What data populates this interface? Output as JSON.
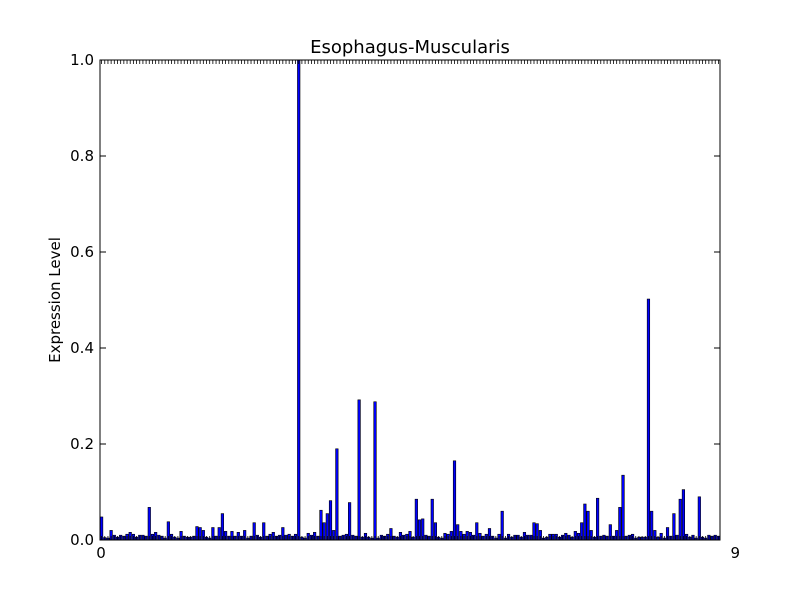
{
  "chart_data": {
    "type": "bar",
    "title": "Esophagus-Muscularis",
    "xlabel": "",
    "ylabel": "Expression Level",
    "ylim": [
      0,
      1.0
    ],
    "yticks": [
      "0.0",
      "0.2",
      "0.4",
      "0.6",
      "0.8",
      "1.0"
    ],
    "grid": false,
    "bar_color": "#0000ff",
    "x_tick_text": "0",
    "x_tick_text_end": "9",
    "values": [
      0.048,
      0.005,
      0.004,
      0.02,
      0.01,
      0.006,
      0.01,
      0.008,
      0.012,
      0.016,
      0.012,
      0.006,
      0.01,
      0.01,
      0.008,
      0.068,
      0.012,
      0.016,
      0.01,
      0.008,
      0.004,
      0.038,
      0.012,
      0.006,
      0.004,
      0.018,
      0.008,
      0.006,
      0.006,
      0.008,
      0.028,
      0.026,
      0.02,
      0.006,
      0.004,
      0.026,
      0.008,
      0.026,
      0.055,
      0.018,
      0.008,
      0.018,
      0.008,
      0.016,
      0.008,
      0.02,
      0.004,
      0.008,
      0.036,
      0.01,
      0.006,
      0.036,
      0.008,
      0.012,
      0.016,
      0.008,
      0.01,
      0.026,
      0.01,
      0.012,
      0.008,
      0.012,
      1.0,
      0.006,
      0.004,
      0.014,
      0.01,
      0.016,
      0.008,
      0.062,
      0.036,
      0.055,
      0.082,
      0.02,
      0.19,
      0.008,
      0.01,
      0.012,
      0.078,
      0.01,
      0.008,
      0.292,
      0.006,
      0.014,
      0.006,
      0.004,
      0.288,
      0.004,
      0.01,
      0.008,
      0.012,
      0.024,
      0.008,
      0.006,
      0.016,
      0.01,
      0.012,
      0.018,
      0.006,
      0.085,
      0.042,
      0.044,
      0.01,
      0.008,
      0.085,
      0.036,
      0.006,
      0.004,
      0.014,
      0.012,
      0.018,
      0.165,
      0.032,
      0.018,
      0.012,
      0.018,
      0.016,
      0.01,
      0.036,
      0.014,
      0.008,
      0.012,
      0.024,
      0.008,
      0.004,
      0.012,
      0.06,
      0.004,
      0.012,
      0.006,
      0.01,
      0.01,
      0.006,
      0.016,
      0.01,
      0.01,
      0.036,
      0.034,
      0.02,
      0.004,
      0.006,
      0.012,
      0.012,
      0.012,
      0.006,
      0.01,
      0.014,
      0.01,
      0.006,
      0.018,
      0.014,
      0.036,
      0.075,
      0.06,
      0.02,
      0.006,
      0.087,
      0.008,
      0.01,
      0.008,
      0.032,
      0.008,
      0.02,
      0.068,
      0.135,
      0.008,
      0.01,
      0.012,
      0.004,
      0.006,
      0.006,
      0.006,
      0.502,
      0.06,
      0.02,
      0.006,
      0.014,
      0.004,
      0.026,
      0.008,
      0.055,
      0.01,
      0.085,
      0.105,
      0.012,
      0.006,
      0.01,
      0.004,
      0.09,
      0.006,
      0.004,
      0.01,
      0.008,
      0.01,
      0.008
    ]
  }
}
